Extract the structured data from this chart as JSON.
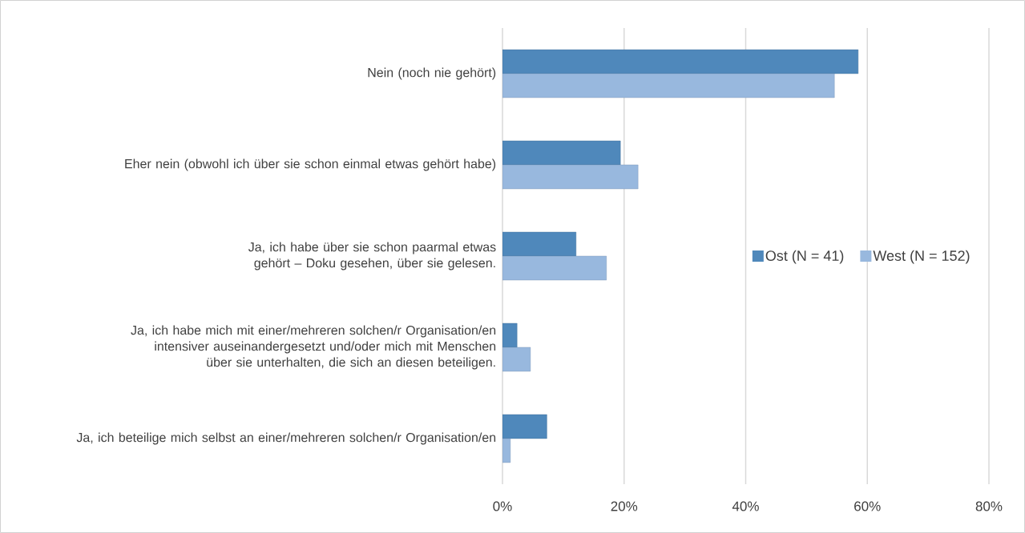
{
  "chart_data": {
    "type": "bar",
    "orientation": "horizontal",
    "categories": [
      "Nein (noch nie gehört)",
      "Eher nein (obwohl ich über sie schon einmal etwas gehört habe)",
      "Ja, ich habe über sie schon paarmal etwas gehört – Doku gesehen, über sie gelesen.",
      "Ja, ich habe mich mit einer/mehreren solchen/r Organisation/en intensiver auseinandergesetzt und/oder mich mit Menschen über sie unterhalten, die sich an diesen beteiligen.",
      "Ja, ich beteilige mich selbst an einer/mehreren solchen/r Organisation/en"
    ],
    "series": [
      {
        "name": "Ost (N = 41)",
        "color": "#4f88bb",
        "values": [
          58.5,
          19.4,
          12.1,
          2.4,
          7.3
        ]
      },
      {
        "name": "West (N = 152)",
        "color": "#98b8de",
        "values": [
          54.6,
          22.3,
          17.1,
          4.6,
          1.3
        ]
      }
    ],
    "xlim": [
      0,
      80
    ],
    "xticks": [
      {
        "value": 0,
        "label": "0%"
      },
      {
        "value": 20,
        "label": "20%"
      },
      {
        "value": 40,
        "label": "40%"
      },
      {
        "value": 60,
        "label": "60%"
      },
      {
        "value": 80,
        "label": "80%"
      }
    ],
    "grid": "x",
    "legend": "right"
  }
}
